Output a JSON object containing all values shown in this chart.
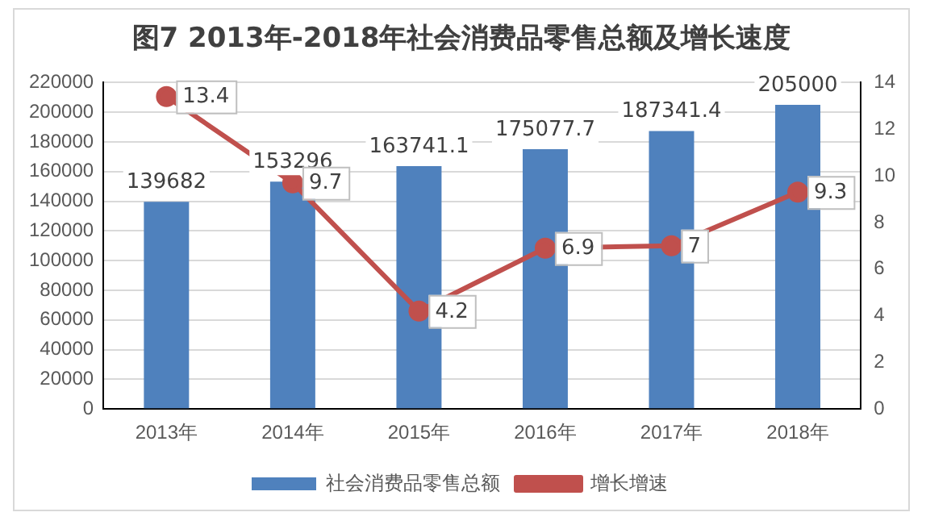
{
  "chart_data": {
    "type": "bar",
    "title": "图7  2013年-2018年社会消费品零售总额及增长速度",
    "categories": [
      "2013年",
      "2014年",
      "2015年",
      "2016年",
      "2017年",
      "2018年"
    ],
    "series": [
      {
        "name": "社会消费品零售总额",
        "color": "#4f81bd",
        "values": [
          139682,
          153296,
          163741.1,
          175077.7,
          187341.4,
          205000
        ]
      },
      {
        "name": "增长增速",
        "type": "line",
        "axis": "y2",
        "color": "#c0504d",
        "marker": "circle",
        "values": [
          13.4,
          9.7,
          4.2,
          6.9,
          7,
          9.3
        ]
      }
    ],
    "ylim": [
      0,
      220000
    ],
    "yticks": [
      0,
      20000,
      40000,
      60000,
      80000,
      100000,
      120000,
      140000,
      160000,
      180000,
      200000,
      220000
    ],
    "y2lim": [
      0,
      14
    ],
    "y2ticks": [
      0,
      2,
      4,
      6,
      8,
      10,
      12,
      14
    ],
    "grid": "y",
    "legend": "bottom",
    "data_labels": true
  }
}
